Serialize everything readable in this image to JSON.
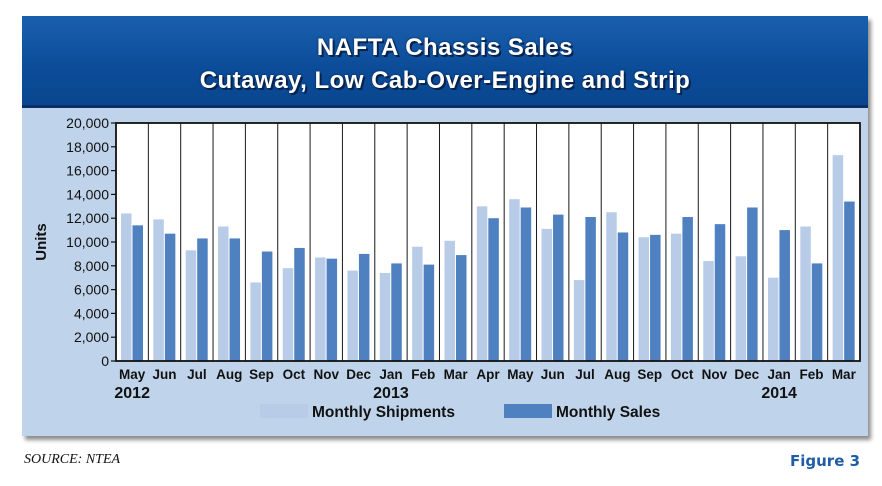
{
  "header": {
    "title": "NAFTA Chassis Sales",
    "subtitle": "Cutaway, Low Cab-Over-Engine and Strip"
  },
  "footer": {
    "source": "SOURCE: NTEA",
    "figure": "Figure 3"
  },
  "chart_data": {
    "type": "bar",
    "ylabel": "Units",
    "ylim": [
      0,
      20000
    ],
    "yticks": [
      "0",
      "2,000",
      "4,000",
      "6,000",
      "8,000",
      "10,000",
      "12,000",
      "14,000",
      "16,000",
      "18,000",
      "20,000"
    ],
    "categories": [
      "May",
      "Jun",
      "Jul",
      "Aug",
      "Sep",
      "Oct",
      "Nov",
      "Dec",
      "Jan",
      "Feb",
      "Mar",
      "Apr",
      "May",
      "Jun",
      "Jul",
      "Aug",
      "Sep",
      "Oct",
      "Nov",
      "Dec",
      "Jan",
      "Feb",
      "Mar"
    ],
    "year_labels": [
      {
        "label": "2012",
        "category_index": 0
      },
      {
        "label": "2013",
        "category_index": 8
      },
      {
        "label": "2014",
        "category_index": 20
      }
    ],
    "series": [
      {
        "name": "Monthly Shipments",
        "color": "#b8cce8",
        "values": [
          12400,
          11900,
          9300,
          11300,
          6600,
          7800,
          8700,
          7600,
          7400,
          9600,
          10100,
          13000,
          13600,
          11100,
          6800,
          12500,
          10400,
          10700,
          8400,
          8800,
          7000,
          11300,
          17300
        ]
      },
      {
        "name": "Monthly Sales",
        "color": "#4f80c0",
        "values": [
          11400,
          10700,
          10300,
          10300,
          9200,
          9500,
          8600,
          9000,
          8200,
          8100,
          8900,
          12000,
          12900,
          12300,
          12100,
          10800,
          10600,
          12100,
          11500,
          12900,
          11000,
          8200,
          13400
        ]
      }
    ],
    "grid": {
      "vertical": true,
      "horizontal": false
    },
    "legend": "bottom"
  }
}
